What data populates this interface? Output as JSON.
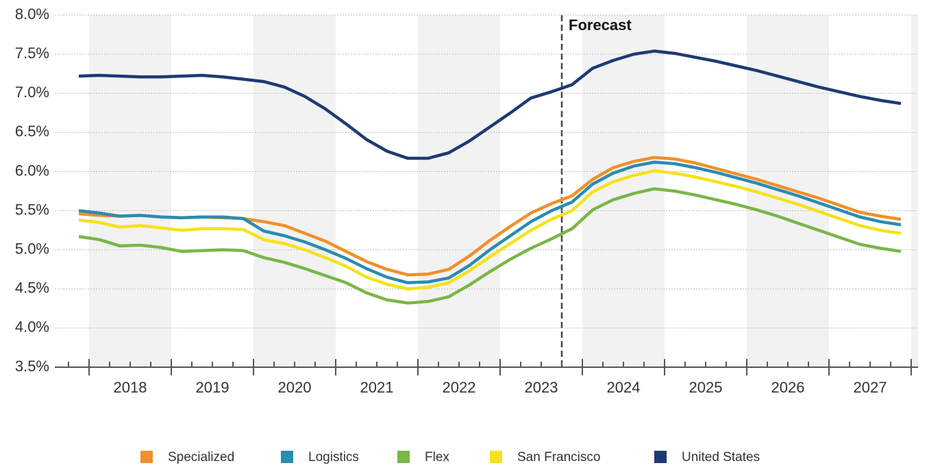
{
  "chart_data": {
    "type": "line",
    "annotation": "Forecast",
    "categories": [
      null,
      null,
      "2018",
      null,
      null,
      null,
      "2019",
      null,
      null,
      null,
      "2020",
      null,
      null,
      null,
      "2021",
      null,
      null,
      null,
      "2022",
      null,
      null,
      null,
      "2023",
      null,
      null,
      null,
      "2024",
      null,
      null,
      null,
      "2025",
      null,
      null,
      null,
      "2026",
      null,
      null,
      null,
      "2027",
      null,
      null
    ],
    "ylim": [
      3.5,
      8.0
    ],
    "yticks": [
      {
        "value": 3.5,
        "label": "3.5%"
      },
      {
        "value": 4.0,
        "label": "4.0%"
      },
      {
        "value": 4.5,
        "label": "4.5%"
      },
      {
        "value": 5.0,
        "label": "5.0%"
      },
      {
        "value": 5.5,
        "label": "5.5%"
      },
      {
        "value": 6.0,
        "label": "6.0%"
      },
      {
        "value": 6.5,
        "label": "6.5%"
      },
      {
        "value": 7.0,
        "label": "7.0%"
      },
      {
        "value": 7.5,
        "label": "7.5%"
      },
      {
        "value": 8.0,
        "label": "8.0%"
      }
    ],
    "grid": true,
    "legend": "bottom",
    "series": [
      {
        "name": "Specialized",
        "color": "#f0902a",
        "values": [
          5.46,
          5.44,
          5.43,
          5.44,
          5.42,
          5.41,
          5.42,
          5.41,
          5.4,
          5.36,
          5.31,
          5.21,
          5.11,
          4.98,
          4.85,
          4.75,
          4.68,
          4.69,
          4.75,
          4.92,
          5.12,
          5.3,
          5.47,
          5.59,
          5.69,
          5.9,
          6.05,
          6.13,
          6.18,
          6.16,
          6.11,
          6.04,
          5.97,
          5.9,
          5.82,
          5.74,
          5.66,
          5.57,
          5.48,
          5.43,
          5.39
        ]
      },
      {
        "name": "Logistics",
        "color": "#2a8cb0",
        "values": [
          5.5,
          5.47,
          5.43,
          5.44,
          5.42,
          5.41,
          5.42,
          5.42,
          5.4,
          5.24,
          5.18,
          5.1,
          5.0,
          4.89,
          4.76,
          4.65,
          4.58,
          4.59,
          4.64,
          4.8,
          5.0,
          5.18,
          5.36,
          5.5,
          5.61,
          5.84,
          5.98,
          6.07,
          6.12,
          6.1,
          6.05,
          5.99,
          5.92,
          5.85,
          5.77,
          5.69,
          5.6,
          5.51,
          5.42,
          5.36,
          5.32
        ]
      },
      {
        "name": "Flex",
        "color": "#7ab648",
        "values": [
          5.17,
          5.13,
          5.05,
          5.06,
          5.03,
          4.98,
          4.99,
          5.0,
          4.99,
          4.9,
          4.84,
          4.76,
          4.67,
          4.58,
          4.45,
          4.36,
          4.32,
          4.34,
          4.4,
          4.55,
          4.72,
          4.88,
          5.02,
          5.14,
          5.27,
          5.51,
          5.64,
          5.72,
          5.78,
          5.75,
          5.7,
          5.64,
          5.58,
          5.51,
          5.43,
          5.34,
          5.25,
          5.16,
          5.07,
          5.02,
          4.98
        ]
      },
      {
        "name": "San Francisco",
        "color": "#f5e21a",
        "values": [
          5.38,
          5.35,
          5.29,
          5.31,
          5.28,
          5.25,
          5.27,
          5.27,
          5.26,
          5.13,
          5.08,
          5.0,
          4.9,
          4.79,
          4.65,
          4.56,
          4.5,
          4.52,
          4.58,
          4.73,
          4.91,
          5.08,
          5.25,
          5.39,
          5.5,
          5.74,
          5.87,
          5.95,
          6.01,
          5.98,
          5.93,
          5.87,
          5.81,
          5.74,
          5.66,
          5.58,
          5.49,
          5.4,
          5.31,
          5.25,
          5.21
        ]
      },
      {
        "name": "United States",
        "color": "#1f3a72",
        "values": [
          7.22,
          7.23,
          7.22,
          7.21,
          7.21,
          7.22,
          7.23,
          7.21,
          7.18,
          7.15,
          7.08,
          6.96,
          6.8,
          6.61,
          6.41,
          6.26,
          6.17,
          6.17,
          6.24,
          6.39,
          6.57,
          6.75,
          6.94,
          7.02,
          7.11,
          7.32,
          7.42,
          7.5,
          7.54,
          7.51,
          7.46,
          7.41,
          7.35,
          7.29,
          7.22,
          7.15,
          7.08,
          7.02,
          6.96,
          6.91,
          6.87
        ]
      }
    ]
  }
}
